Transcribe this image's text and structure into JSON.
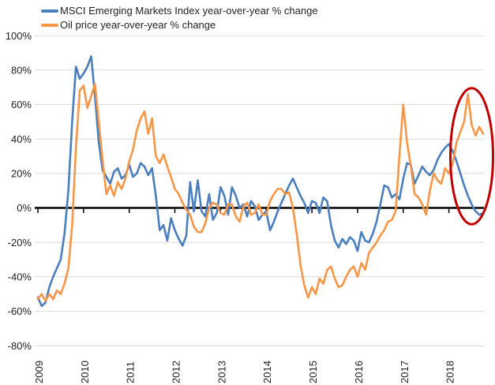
{
  "legend": {
    "items": [
      {
        "label": "MSCI Emerging Markets Index year-over-year % change",
        "color": "#4a7ebc"
      },
      {
        "label": "Oil price year-over-year % change",
        "color": "#f79646"
      }
    ]
  },
  "chart_data": {
    "type": "line",
    "title": "",
    "xlabel": "",
    "ylabel": "",
    "x_unit": "month",
    "x_start": "2009-01",
    "x_end": "2018-10",
    "x_tick_labels": [
      "2009",
      "2010",
      "2011",
      "2012",
      "2013",
      "2014",
      "2015",
      "2016",
      "2017",
      "2018"
    ],
    "y_ticks": [
      100,
      80,
      60,
      40,
      20,
      0,
      -20,
      -40,
      -60,
      -80
    ],
    "y_tick_labels": [
      "100%",
      "80%",
      "60%",
      "40%",
      "20%",
      "0%",
      "-20%",
      "-40%",
      "-60%",
      "-80%"
    ],
    "ylim": [
      -80,
      100
    ],
    "grid": "horizontal",
    "legend_position": "top-left",
    "colors": {
      "grid": "#d9d9d9",
      "axis": "#000000",
      "text": "#1f1f1f",
      "annotation": "#c00000"
    },
    "series": [
      {
        "name": "MSCI Emerging Markets Index year-over-year % change",
        "color": "#4a7ebc",
        "values": [
          -52,
          -57,
          -55,
          -46,
          -40,
          -35,
          -30,
          -15,
          10,
          50,
          82,
          75,
          78,
          82,
          88,
          65,
          38,
          22,
          18,
          14,
          21,
          23,
          17,
          19,
          25,
          18,
          20,
          26,
          24,
          19,
          23,
          7,
          -13,
          -10,
          -19,
          -6,
          -13,
          -18,
          -22,
          -16,
          15,
          -2,
          16,
          -2,
          -5,
          8,
          -7,
          -3,
          12,
          7,
          -4,
          12,
          7,
          0,
          2,
          -5,
          4,
          1,
          -7,
          -4,
          -2,
          -13,
          -8,
          -2,
          3,
          8,
          13,
          17,
          12,
          7,
          3,
          -3,
          4,
          3,
          -3,
          6,
          4,
          -10,
          -19,
          -23,
          -18,
          -21,
          -17,
          -19,
          -25,
          -14,
          -19,
          -20,
          -15,
          -8,
          2,
          13,
          12,
          6,
          8,
          5,
          17,
          26,
          25,
          14,
          19,
          24,
          21,
          19,
          22,
          28,
          32,
          35,
          37,
          33,
          27,
          20,
          13,
          7,
          2,
          -2,
          -4,
          -3
        ]
      },
      {
        "name": "Oil price year-over-year % change",
        "color": "#f79646",
        "values": [
          -53,
          -50,
          -54,
          -50,
          -53,
          -48,
          -50,
          -44,
          -35,
          -10,
          35,
          68,
          71,
          58,
          65,
          72,
          50,
          28,
          8,
          13,
          7,
          15,
          11,
          17,
          27,
          34,
          45,
          52,
          56,
          43,
          52,
          30,
          26,
          31,
          24,
          18,
          11,
          8,
          3,
          -1,
          -4,
          -11,
          -14,
          -14,
          -9,
          0,
          3,
          2,
          -3,
          -4,
          2,
          2,
          -5,
          -8,
          1,
          3,
          -4,
          -3,
          2,
          -4,
          -4,
          4,
          8,
          11,
          11,
          8,
          9,
          0,
          -15,
          -33,
          -45,
          -52,
          -46,
          -50,
          -41,
          -44,
          -36,
          -34,
          -41,
          -46,
          -45,
          -40,
          -36,
          -34,
          -40,
          -32,
          -36,
          -26,
          -23,
          -20,
          -16,
          -13,
          -8,
          -7,
          -2,
          30,
          60,
          38,
          24,
          8,
          6,
          2,
          -4,
          10,
          20,
          16,
          14,
          23,
          20,
          26,
          38,
          44,
          50,
          66,
          48,
          42,
          47,
          43
        ]
      }
    ],
    "annotation": {
      "shape": "ellipse",
      "color": "#c00000",
      "center_month_index": 114,
      "center_value": 30,
      "radius_months": 5.6,
      "radius_value": 39.5
    }
  }
}
